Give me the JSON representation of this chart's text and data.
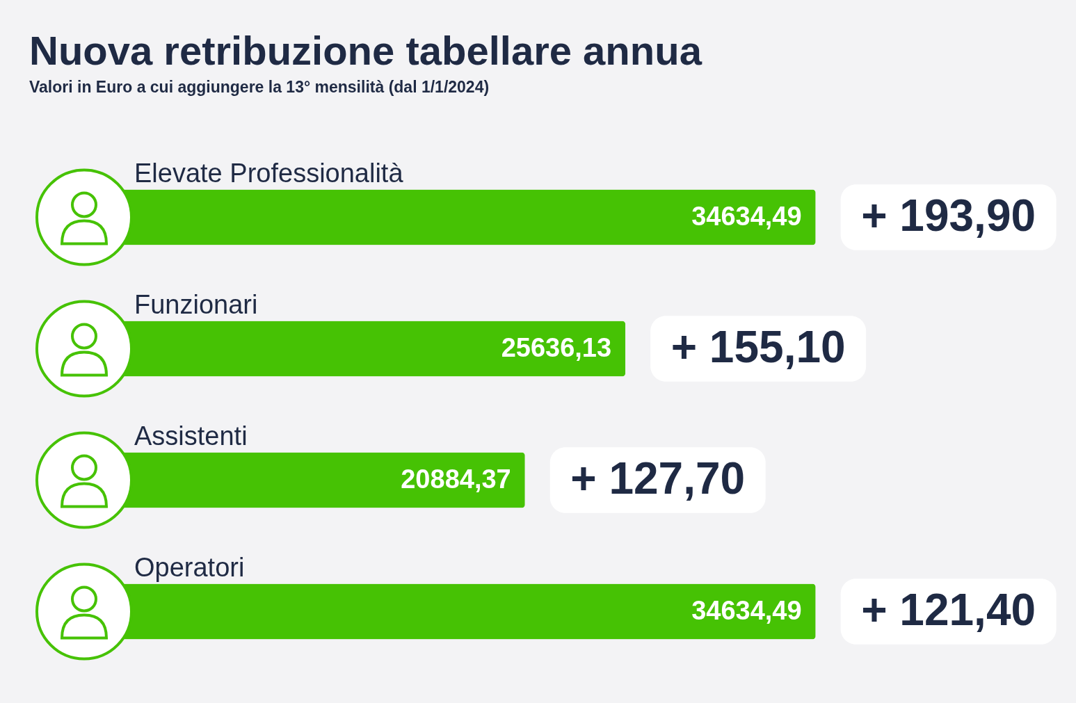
{
  "chart_data": {
    "type": "bar",
    "orientation": "horizontal",
    "title": "Nuova retribuzione tabellare annua",
    "subtitle": "Valori in Euro a cui aggiungere la 13° mensilità (dal 1/1/2024)",
    "categories": [
      "Elevate Professionalità",
      "Funzionari",
      "Assistenti",
      "Operatori"
    ],
    "values": [
      34634.49,
      25636.13,
      20884.37,
      34634.49
    ],
    "value_labels": [
      "34634,49",
      "25636,13",
      "20884,37",
      "34634,49"
    ],
    "color": "#46c204",
    "annotations": [
      "+ 193,90",
      "+ 155,10",
      "+ 127,70",
      "+ 121,40"
    ]
  }
}
